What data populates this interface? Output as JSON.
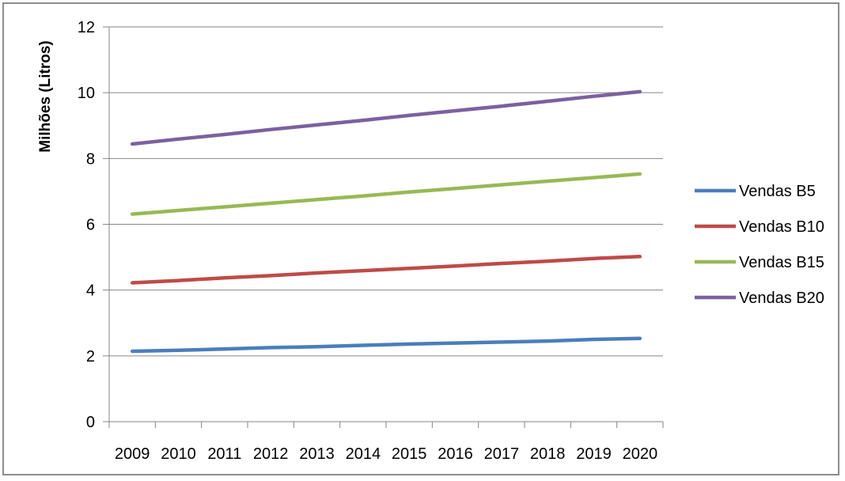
{
  "chart_data": {
    "type": "line",
    "title": "",
    "xlabel": "",
    "ylabel": "Milhões (Litros)",
    "ylim": [
      0,
      12
    ],
    "yticks": [
      0,
      2,
      4,
      6,
      8,
      10,
      12
    ],
    "grid": true,
    "legend_position": "right",
    "categories": [
      "2009",
      "2010",
      "2011",
      "2012",
      "2013",
      "2014",
      "2015",
      "2016",
      "2017",
      "2018",
      "2019",
      "2020"
    ],
    "series": [
      {
        "name": "Vendas B5",
        "color": "#4A7EBB",
        "values": [
          2.14,
          2.17,
          2.21,
          2.25,
          2.28,
          2.32,
          2.36,
          2.39,
          2.42,
          2.45,
          2.5,
          2.53
        ]
      },
      {
        "name": "Vendas B10",
        "color": "#BE4B48",
        "values": [
          4.22,
          4.29,
          4.37,
          4.44,
          4.52,
          4.59,
          4.66,
          4.73,
          4.81,
          4.88,
          4.96,
          5.02
        ]
      },
      {
        "name": "Vendas B15",
        "color": "#98B954",
        "values": [
          6.31,
          6.42,
          6.53,
          6.64,
          6.75,
          6.86,
          6.98,
          7.09,
          7.2,
          7.31,
          7.42,
          7.53
        ]
      },
      {
        "name": "Vendas B20",
        "color": "#7D60A0",
        "values": [
          8.44,
          8.59,
          8.73,
          8.88,
          9.02,
          9.16,
          9.31,
          9.45,
          9.59,
          9.74,
          9.89,
          10.03
        ]
      }
    ]
  }
}
